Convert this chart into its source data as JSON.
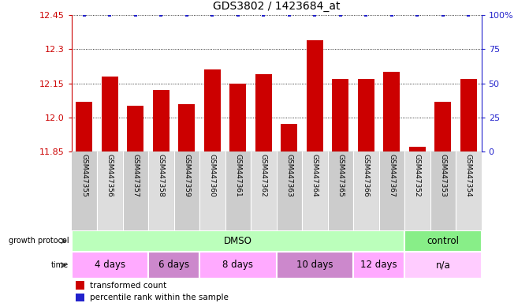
{
  "title": "GDS3802 / 1423684_at",
  "samples": [
    "GSM447355",
    "GSM447356",
    "GSM447357",
    "GSM447358",
    "GSM447359",
    "GSM447360",
    "GSM447361",
    "GSM447362",
    "GSM447363",
    "GSM447364",
    "GSM447365",
    "GSM447366",
    "GSM447367",
    "GSM447352",
    "GSM447353",
    "GSM447354"
  ],
  "transformed_counts": [
    12.07,
    12.18,
    12.05,
    12.12,
    12.06,
    12.21,
    12.15,
    12.19,
    11.97,
    12.34,
    12.17,
    12.17,
    12.2,
    11.87,
    12.07,
    12.17
  ],
  "ylim_left": [
    11.85,
    12.45
  ],
  "ylim_right": [
    0,
    100
  ],
  "yticks_left": [
    11.85,
    12.0,
    12.15,
    12.3,
    12.45
  ],
  "yticks_right": [
    0,
    25,
    50,
    75,
    100
  ],
  "bar_color": "#cc0000",
  "dot_color": "#2222cc",
  "bar_width": 0.65,
  "groups": [
    {
      "label": "DMSO",
      "start": 0,
      "end": 13,
      "color": "#bbffbb"
    },
    {
      "label": "control",
      "start": 13,
      "end": 16,
      "color": "#88ee88"
    }
  ],
  "time_groups": [
    {
      "label": "4 days",
      "start": 0,
      "end": 3,
      "color": "#ffaaff"
    },
    {
      "label": "6 days",
      "start": 3,
      "end": 5,
      "color": "#cc88cc"
    },
    {
      "label": "8 days",
      "start": 5,
      "end": 8,
      "color": "#ffaaff"
    },
    {
      "label": "10 days",
      "start": 8,
      "end": 11,
      "color": "#cc88cc"
    },
    {
      "label": "12 days",
      "start": 11,
      "end": 13,
      "color": "#ffaaff"
    },
    {
      "label": "n/a",
      "start": 13,
      "end": 16,
      "color": "#ffccff"
    }
  ],
  "growth_protocol_label": "growth protocol",
  "time_label": "time",
  "legend_bar": "transformed count",
  "legend_dot": "percentile rank within the sample",
  "tick_label_color_left": "#cc0000",
  "tick_label_color_right": "#2222cc",
  "sample_bg_even": "#cccccc",
  "sample_bg_odd": "#dddddd"
}
